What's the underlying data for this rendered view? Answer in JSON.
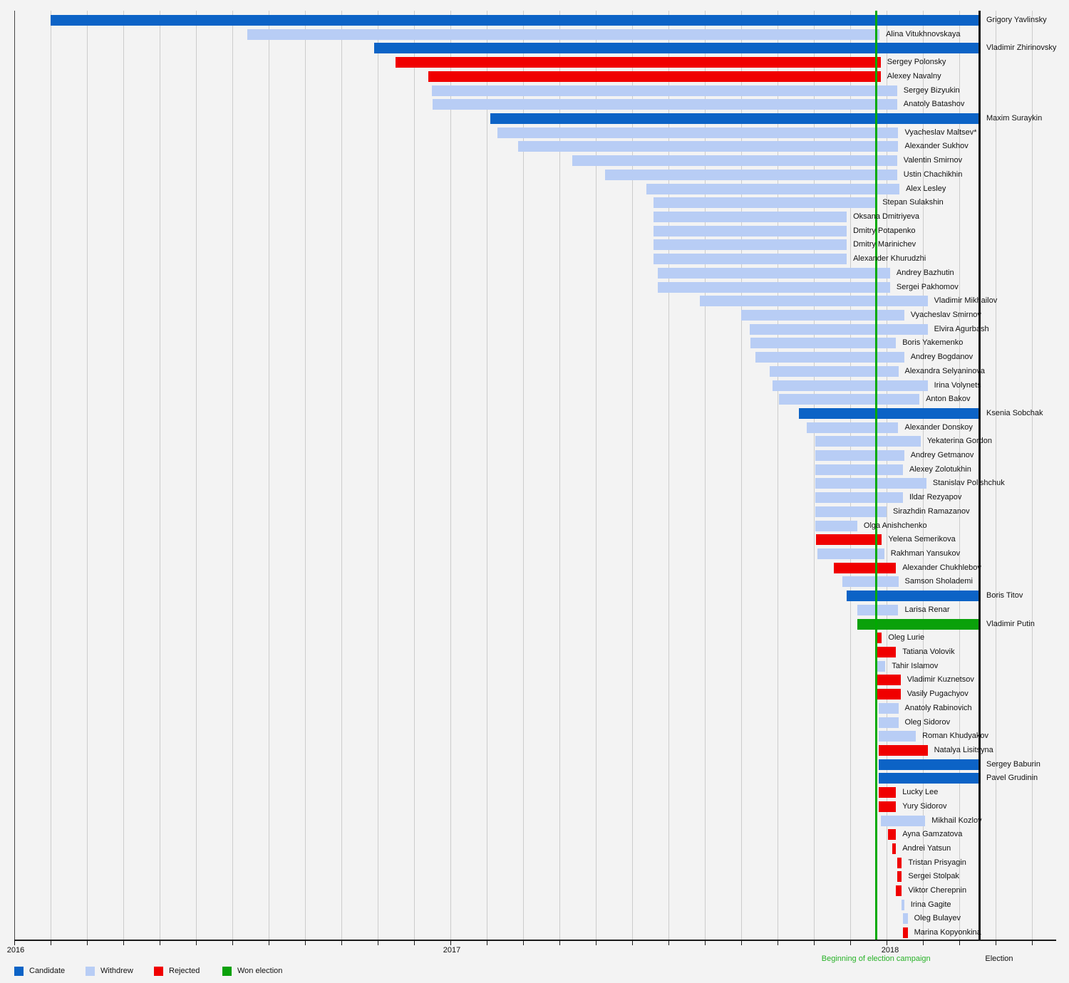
{
  "chart_data": {
    "type": "gantt",
    "description_note": "",
    "axis": {
      "start": "2016-01-01",
      "end": "2018-06-01",
      "month_gridlines": true,
      "year_ticks": [
        {
          "label": "2016",
          "date": "2016-01-01"
        },
        {
          "label": "2017",
          "date": "2017-01-01"
        },
        {
          "label": "2018",
          "date": "2018-01-01"
        }
      ]
    },
    "markers": [
      {
        "label": "Beginning of election campaign",
        "date": "2017-12-23",
        "color": "#00aa00"
      },
      {
        "label": "Election",
        "date": "2018-03-18",
        "color": "#111111"
      }
    ],
    "statuses": {
      "candidate": "#0c63c6",
      "withdrew": "#b8cdf5",
      "rejected": "#f00000",
      "won": "#0aa10a"
    },
    "legend": [
      {
        "label": "Candidate",
        "status": "candidate"
      },
      {
        "label": "Withdrew",
        "status": "withdrew"
      },
      {
        "label": "Rejected",
        "status": "rejected"
      },
      {
        "label": "Won election",
        "status": "won"
      }
    ],
    "candidates": [
      {
        "name": "Grigory Yavlinsky",
        "status": "candidate",
        "start": "2016-02-01",
        "end": "2018-03-18"
      },
      {
        "name": "Alina Vitukhnovskaya",
        "status": "withdrew",
        "start": "2016-07-14",
        "end": "2017-12-26"
      },
      {
        "name": "Vladimir Zhirinovsky",
        "status": "candidate",
        "start": "2016-10-29",
        "end": "2018-03-18"
      },
      {
        "name": "Sergey Polonsky",
        "status": "rejected",
        "start": "2016-11-16",
        "end": "2017-12-27"
      },
      {
        "name": "Alexey Navalny",
        "status": "rejected",
        "start": "2016-12-13",
        "end": "2017-12-27"
      },
      {
        "name": "Sergey Bizyukin",
        "status": "withdrew",
        "start": "2016-12-16",
        "end": "2018-01-10"
      },
      {
        "name": "Anatoly Batashov",
        "status": "withdrew",
        "start": "2016-12-17",
        "end": "2018-01-10"
      },
      {
        "name": "Maxim Suraykin",
        "status": "candidate",
        "start": "2017-02-04",
        "end": "2018-03-18"
      },
      {
        "name": "Vyacheslav Maltsev*",
        "status": "withdrew",
        "start": "2017-02-10",
        "end": "2018-01-11"
      },
      {
        "name": "Alexander Sukhov",
        "status": "withdrew",
        "start": "2017-02-28",
        "end": "2018-01-11"
      },
      {
        "name": "Valentin Smirnov",
        "status": "withdrew",
        "start": "2017-04-12",
        "end": "2018-01-10"
      },
      {
        "name": "Ustin Chachikhin",
        "status": "withdrew",
        "start": "2017-05-09",
        "end": "2018-01-10"
      },
      {
        "name": "Alex Lesley",
        "status": "withdrew",
        "start": "2017-06-13",
        "end": "2018-01-12"
      },
      {
        "name": "Stepan Sulakshin",
        "status": "withdrew",
        "start": "2017-06-19",
        "end": "2017-12-23"
      },
      {
        "name": "Oksana Dmitriyeva",
        "status": "withdrew",
        "start": "2017-06-19",
        "end": "2017-11-29"
      },
      {
        "name": "Dmitry Potapenko",
        "status": "withdrew",
        "start": "2017-06-19",
        "end": "2017-11-29"
      },
      {
        "name": "Dmitry Marinichev",
        "status": "withdrew",
        "start": "2017-06-19",
        "end": "2017-11-29"
      },
      {
        "name": "Alexander Khurudzhi",
        "status": "withdrew",
        "start": "2017-06-19",
        "end": "2017-11-29"
      },
      {
        "name": "Andrey Bazhutin",
        "status": "withdrew",
        "start": "2017-06-23",
        "end": "2018-01-04"
      },
      {
        "name": "Sergei Pakhomov",
        "status": "withdrew",
        "start": "2017-06-23",
        "end": "2018-01-04"
      },
      {
        "name": "Vladimir Mikhailov",
        "status": "withdrew",
        "start": "2017-07-28",
        "end": "2018-02-05"
      },
      {
        "name": "Vyacheslav Smirnov",
        "status": "withdrew",
        "start": "2017-09-01",
        "end": "2018-01-16"
      },
      {
        "name": "Elvira Agurbash",
        "status": "withdrew",
        "start": "2017-09-08",
        "end": "2018-02-05"
      },
      {
        "name": "Boris Yakemenko",
        "status": "withdrew",
        "start": "2017-09-09",
        "end": "2018-01-09"
      },
      {
        "name": "Andrey Bogdanov",
        "status": "withdrew",
        "start": "2017-09-13",
        "end": "2018-01-16"
      },
      {
        "name": "Alexandra Selyaninova",
        "status": "withdrew",
        "start": "2017-09-25",
        "end": "2018-01-11"
      },
      {
        "name": "Irina Volynets",
        "status": "withdrew",
        "start": "2017-09-28",
        "end": "2018-02-05"
      },
      {
        "name": "Anton Bakov",
        "status": "withdrew",
        "start": "2017-10-02",
        "end": "2018-01-29"
      },
      {
        "name": "Ksenia Sobchak",
        "status": "candidate",
        "start": "2017-10-19",
        "end": "2018-03-18"
      },
      {
        "name": "Alexander Donskoy",
        "status": "withdrew",
        "start": "2017-10-26",
        "end": "2018-01-11"
      },
      {
        "name": "Yekaterina Gordon",
        "status": "withdrew",
        "start": "2017-11-02",
        "end": "2018-01-30"
      },
      {
        "name": "Andrey Getmanov",
        "status": "withdrew",
        "start": "2017-11-02",
        "end": "2018-01-16"
      },
      {
        "name": "Alexey Zolotukhin",
        "status": "withdrew",
        "start": "2017-11-02",
        "end": "2018-01-15"
      },
      {
        "name": "Stanislav Polishchuk",
        "status": "withdrew",
        "start": "2017-11-02",
        "end": "2018-02-04"
      },
      {
        "name": "Ildar Rezyapov",
        "status": "withdrew",
        "start": "2017-11-02",
        "end": "2018-01-15"
      },
      {
        "name": "Sirazhdin Ramazanov",
        "status": "withdrew",
        "start": "2017-11-02",
        "end": "2018-01-01"
      },
      {
        "name": "Olga Anishchenko",
        "status": "withdrew",
        "start": "2017-11-02",
        "end": "2017-12-07"
      },
      {
        "name": "Yelena Semerikova",
        "status": "rejected",
        "start": "2017-11-03",
        "end": "2017-12-28"
      },
      {
        "name": "Rakhman Yansukov",
        "status": "withdrew",
        "start": "2017-11-04",
        "end": "2017-12-30"
      },
      {
        "name": "Alexander Chukhlebov",
        "status": "rejected",
        "start": "2017-11-18",
        "end": "2018-01-09"
      },
      {
        "name": "Samson Sholademi",
        "status": "withdrew",
        "start": "2017-11-25",
        "end": "2018-01-11"
      },
      {
        "name": "Boris Titov",
        "status": "candidate",
        "start": "2017-11-29",
        "end": "2018-03-18"
      },
      {
        "name": "Larisa Renar",
        "status": "withdrew",
        "start": "2017-12-07",
        "end": "2018-01-11"
      },
      {
        "name": "Vladimir Putin",
        "status": "won",
        "start": "2017-12-07",
        "end": "2018-03-18"
      },
      {
        "name": "Oleg Lurie",
        "status": "rejected",
        "start": "2017-12-22",
        "end": "2017-12-28"
      },
      {
        "name": "Tatiana Volovik",
        "status": "rejected",
        "start": "2017-12-23",
        "end": "2018-01-09"
      },
      {
        "name": "Tahir Islamov",
        "status": "withdrew",
        "start": "2017-12-23",
        "end": "2017-12-31"
      },
      {
        "name": "Vladimir Kuznetsov",
        "status": "rejected",
        "start": "2017-12-24",
        "end": "2018-01-13"
      },
      {
        "name": "Vasily Pugachyov",
        "status": "rejected",
        "start": "2017-12-24",
        "end": "2018-01-13"
      },
      {
        "name": "Anatoly Rabinovich",
        "status": "withdrew",
        "start": "2017-12-25",
        "end": "2018-01-11"
      },
      {
        "name": "Oleg Sidorov",
        "status": "withdrew",
        "start": "2017-12-25",
        "end": "2018-01-11"
      },
      {
        "name": "Roman Khudyakov",
        "status": "withdrew",
        "start": "2017-12-25",
        "end": "2018-01-26"
      },
      {
        "name": "Natalya Lisitsyna",
        "status": "rejected",
        "start": "2017-12-25",
        "end": "2018-02-05"
      },
      {
        "name": "Sergey Baburin",
        "status": "candidate",
        "start": "2017-12-25",
        "end": "2018-03-18"
      },
      {
        "name": "Pavel Grudinin",
        "status": "candidate",
        "start": "2017-12-25",
        "end": "2018-03-18"
      },
      {
        "name": "Lucky Lee",
        "status": "rejected",
        "start": "2017-12-25",
        "end": "2018-01-09"
      },
      {
        "name": "Yury Sidorov",
        "status": "rejected",
        "start": "2017-12-25",
        "end": "2018-01-09"
      },
      {
        "name": "Mikhail Kozlov",
        "status": "withdrew",
        "start": "2017-12-27",
        "end": "2018-02-03"
      },
      {
        "name": "Ayna Gamzatova",
        "status": "rejected",
        "start": "2018-01-02",
        "end": "2018-01-09"
      },
      {
        "name": "Andrei Yatsun",
        "status": "rejected",
        "start": "2018-01-06",
        "end": "2018-01-09"
      },
      {
        "name": "Tristan Prisyagin",
        "status": "rejected",
        "start": "2018-01-10",
        "end": "2018-01-14"
      },
      {
        "name": "Sergei Stolpak",
        "status": "rejected",
        "start": "2018-01-10",
        "end": "2018-01-14"
      },
      {
        "name": "Viktor Cherepnin",
        "status": "rejected",
        "start": "2018-01-09",
        "end": "2018-01-14"
      },
      {
        "name": "Irina Gagite",
        "status": "withdrew",
        "start": "2018-01-14",
        "end": "2018-01-16"
      },
      {
        "name": "Oleg Bulayev",
        "status": "withdrew",
        "start": "2018-01-15",
        "end": "2018-01-19"
      },
      {
        "name": "Marina Kopyonkina",
        "status": "rejected",
        "start": "2018-01-15",
        "end": "2018-01-19"
      }
    ]
  }
}
